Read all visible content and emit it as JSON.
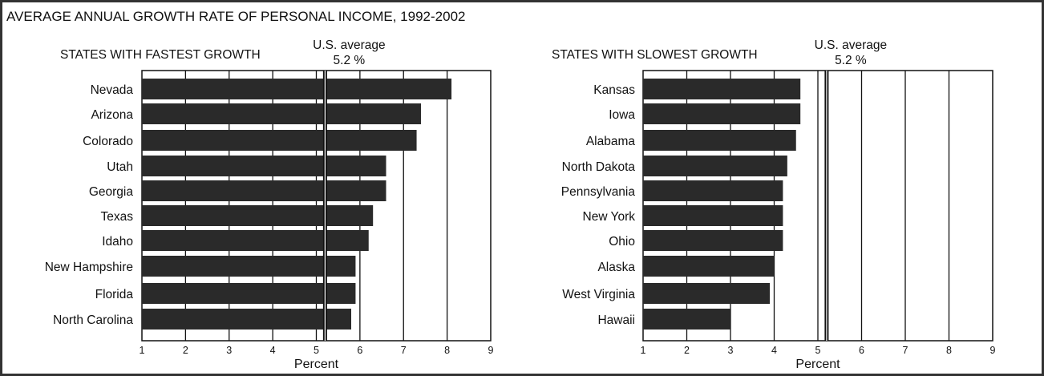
{
  "title": "AVERAGE ANNUAL GROWTH RATE OF PERSONAL INCOME, 1992-2002",
  "chart_data": [
    {
      "type": "bar",
      "orientation": "horizontal",
      "title": "STATES WITH FASTEST GROWTH",
      "xlabel": "Percent",
      "xlim": [
        1,
        9
      ],
      "xticks": [
        "1",
        "2",
        "3",
        "4",
        "5",
        "6",
        "7",
        "8",
        "9"
      ],
      "grid": true,
      "categories": [
        "Nevada",
        "Arizona",
        "Colorado",
        "Utah",
        "Georgia",
        "Texas",
        "Idaho",
        "New Hampshire",
        "Florida",
        "North Carolina"
      ],
      "values": [
        8.1,
        7.4,
        7.3,
        6.6,
        6.6,
        6.3,
        6.2,
        5.9,
        5.9,
        5.8
      ],
      "reference_line": {
        "label": "U.S. average",
        "value_label": "5.2 %",
        "value": 5.2
      }
    },
    {
      "type": "bar",
      "orientation": "horizontal",
      "title": "STATES WITH SLOWEST GROWTH",
      "xlabel": "Percent",
      "xlim": [
        1,
        9
      ],
      "xticks": [
        "1",
        "2",
        "3",
        "4",
        "5",
        "6",
        "7",
        "8",
        "9"
      ],
      "grid": true,
      "categories": [
        "Kansas",
        "Iowa",
        "Alabama",
        "North Dakota",
        "Pennsylvania",
        "New York",
        "Ohio",
        "Alaska",
        "West Virginia",
        "Hawaii"
      ],
      "values": [
        4.6,
        4.6,
        4.5,
        4.3,
        4.2,
        4.2,
        4.2,
        4.0,
        3.9,
        3.0
      ],
      "reference_line": {
        "label": "U.S. average",
        "value_label": "5.2 %",
        "value": 5.2
      }
    }
  ],
  "colors": {
    "bar": "#2a2a2a",
    "axis": "#111111",
    "frame": "#333333"
  }
}
